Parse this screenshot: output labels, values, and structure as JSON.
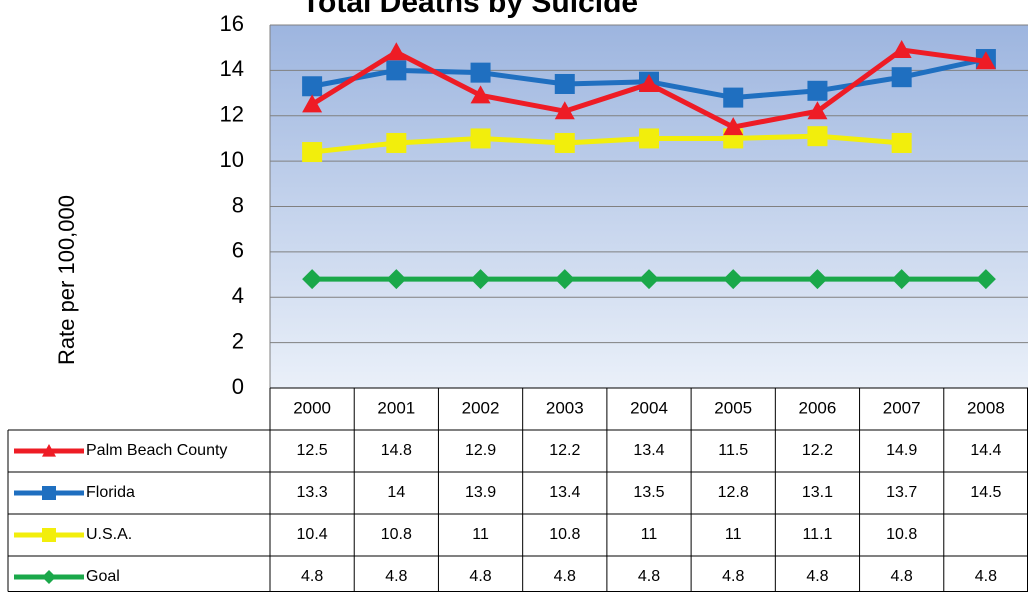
{
  "chart_data": {
    "type": "line",
    "title": "Total Deaths by Suicide",
    "y_label": "Rate per 100,000",
    "categories": [
      "2000",
      "2001",
      "2002",
      "2003",
      "2004",
      "2005",
      "2006",
      "2007",
      "2008"
    ],
    "series": [
      {
        "name": "Palm Beach County",
        "color": "#ee1c25",
        "marker": "triangle",
        "values": [
          12.5,
          14.8,
          12.9,
          12.2,
          13.4,
          11.5,
          12.2,
          14.9,
          14.4
        ]
      },
      {
        "name": "Florida",
        "color": "#1f6fc0",
        "marker": "square",
        "values": [
          13.3,
          14,
          13.9,
          13.4,
          13.5,
          12.8,
          13.1,
          13.7,
          14.5
        ]
      },
      {
        "name": "U.S.A.",
        "color": "#f2ee0c",
        "marker": "square",
        "values": [
          10.4,
          10.8,
          11,
          10.8,
          11,
          11,
          11.1,
          10.8,
          null
        ]
      },
      {
        "name": "Goal",
        "color": "#1aa84a",
        "marker": "diamond",
        "values": [
          4.8,
          4.8,
          4.8,
          4.8,
          4.8,
          4.8,
          4.8,
          4.8,
          4.8
        ]
      }
    ],
    "ylim": [
      0,
      16
    ],
    "yticks": [
      0,
      2,
      4,
      6,
      8,
      10,
      12,
      14,
      16
    ],
    "grid": true,
    "data_table": true
  }
}
